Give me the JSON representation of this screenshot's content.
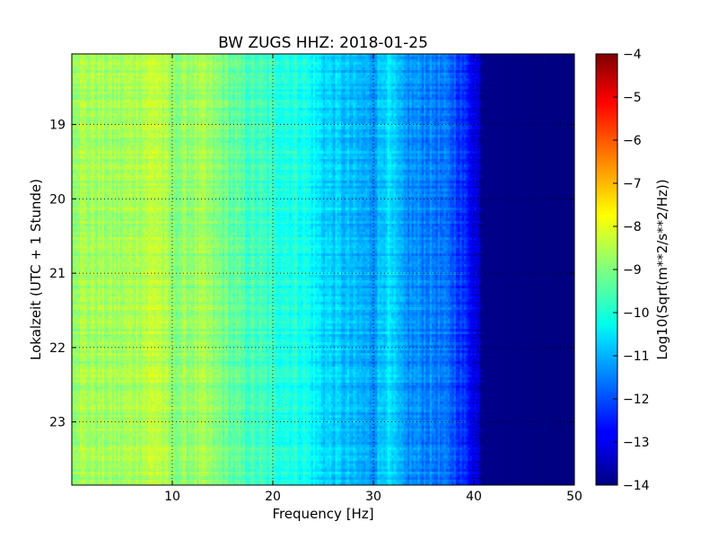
{
  "chart_data": {
    "type": "heatmap",
    "title": "BW ZUGS HHZ: 2018-01-25",
    "xlabel": "Frequency [Hz]",
    "ylabel": "Lokalzeit (UTC + 1 Stunde)",
    "xlim": [
      0,
      50
    ],
    "ylim": [
      18.05,
      23.85
    ],
    "y_inverted": true,
    "x_ticks": [
      10,
      20,
      30,
      40,
      50
    ],
    "y_ticks": [
      19,
      20,
      21,
      22,
      23
    ],
    "grid": true,
    "colormap": "jet",
    "colorbar": {
      "label": "Log10(Sqrt(m**2/s**2/Hz))",
      "min": -14,
      "max": -4,
      "ticks": [
        -14,
        -13,
        -12,
        -11,
        -10,
        -9,
        -8,
        -7,
        -6,
        -5,
        -4
      ]
    },
    "spectrum_profile": [
      {
        "f": 0,
        "v": -8.6
      },
      {
        "f": 5,
        "v": -8.7
      },
      {
        "f": 8.5,
        "v": -8.3
      },
      {
        "f": 10,
        "v": -8.9
      },
      {
        "f": 13,
        "v": -8.7
      },
      {
        "f": 17,
        "v": -9.5
      },
      {
        "f": 20,
        "v": -9.8
      },
      {
        "f": 23,
        "v": -10.0
      },
      {
        "f": 25,
        "v": -10.6
      },
      {
        "f": 28,
        "v": -11.0
      },
      {
        "f": 30,
        "v": -11.2
      },
      {
        "f": 31.3,
        "v": -10.5
      },
      {
        "f": 33,
        "v": -11.3
      },
      {
        "f": 36,
        "v": -11.5
      },
      {
        "f": 38,
        "v": -11.9
      },
      {
        "f": 40,
        "v": -12.8
      },
      {
        "f": 41,
        "v": -13.9
      },
      {
        "f": 50,
        "v": -14.0
      }
    ]
  }
}
